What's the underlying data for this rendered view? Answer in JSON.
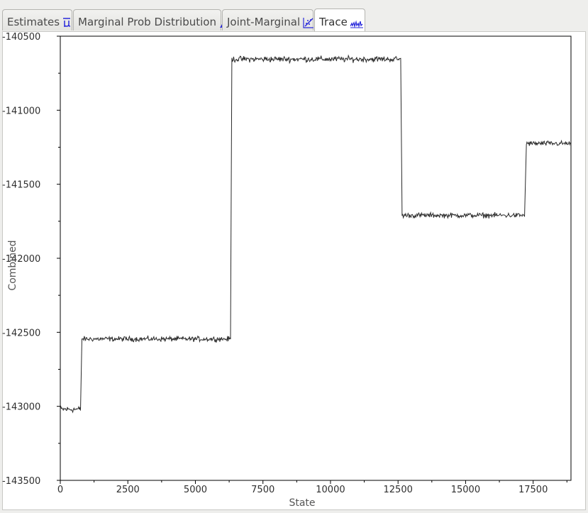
{
  "tabs": [
    {
      "label": "Estimates",
      "icon": "mu-icon",
      "active": false
    },
    {
      "label": "Marginal Prob Distribution",
      "icon": "distribution-icon",
      "active": false
    },
    {
      "label": "Joint-Marginal",
      "icon": "joint-marginal-icon",
      "active": false
    },
    {
      "label": "Trace",
      "icon": "trace-icon",
      "active": true
    }
  ],
  "icon_color": "#2a2adb",
  "chart_data": {
    "type": "line",
    "xlabel": "State",
    "ylabel": "Combined",
    "xlim": [
      0,
      18900
    ],
    "ylim": [
      -143500,
      -140500
    ],
    "x_ticks": [
      0,
      2500,
      5000,
      7500,
      10000,
      12500,
      15000,
      17500
    ],
    "y_ticks": [
      -140500,
      -141000,
      -141500,
      -142000,
      -142500,
      -143000,
      -143500
    ],
    "line_color": "#2a2a2a",
    "segments": [
      {
        "x_start": 0,
        "x_end": 750,
        "mean": -143020,
        "noise": 15
      },
      {
        "x_start": 800,
        "x_end": 6300,
        "mean": -142545,
        "noise": 12
      },
      {
        "x_start": 6350,
        "x_end": 12600,
        "mean": -140655,
        "noise": 14
      },
      {
        "x_start": 12650,
        "x_end": 17200,
        "mean": -141710,
        "noise": 12
      },
      {
        "x_start": 17250,
        "x_end": 18900,
        "mean": -141225,
        "noise": 12
      }
    ]
  }
}
